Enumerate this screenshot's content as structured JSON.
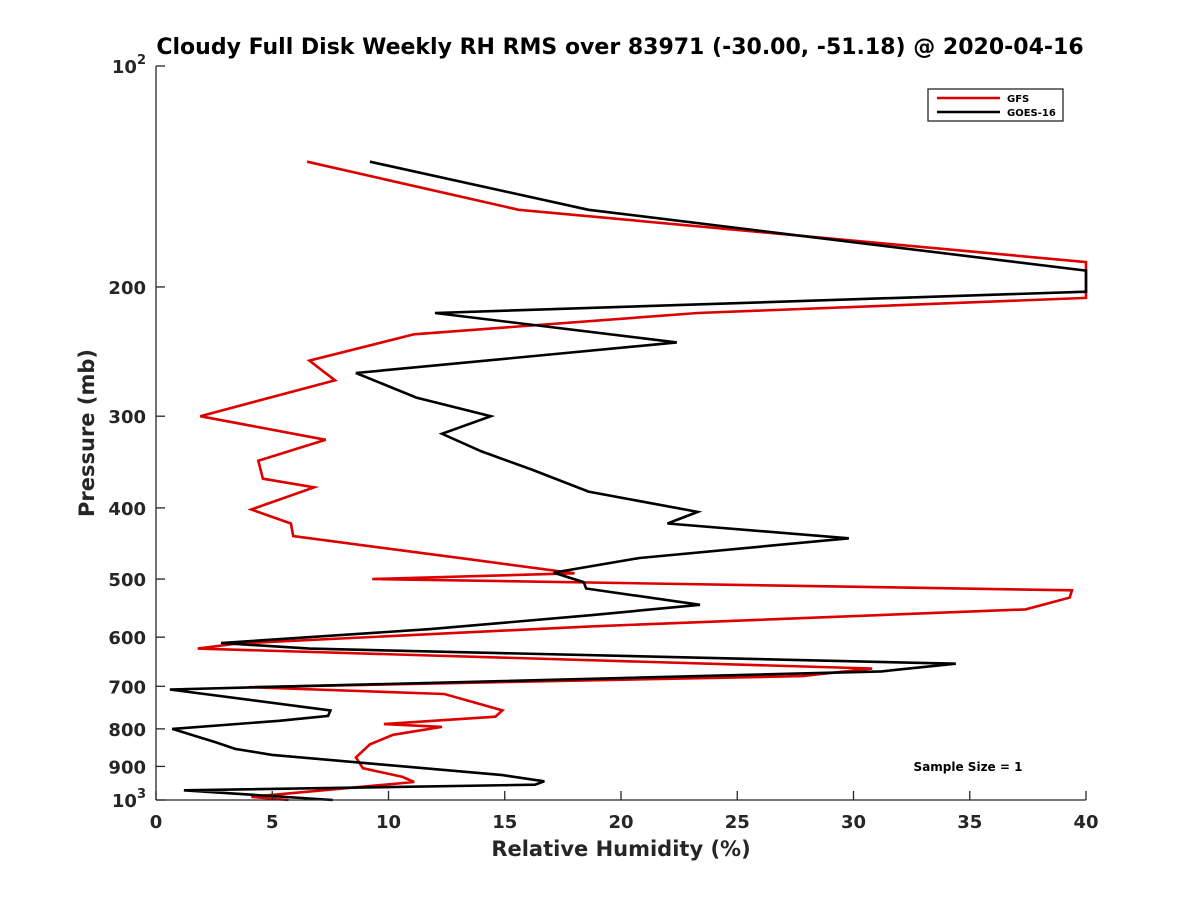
{
  "chart_data": {
    "type": "line",
    "title": "Cloudy Full Disk Weekly RH RMS over 83971 (-30.00, -51.18) @ 2020-04-16",
    "xlabel": "Relative Humidity (%)",
    "ylabel": "Pressure (mb)",
    "xlim": [
      0,
      40
    ],
    "ylim": [
      1000,
      100
    ],
    "y_scale": "log",
    "y_reversed": true,
    "grid": false,
    "legend_position": "top-right",
    "x_ticks": [
      "0",
      "5",
      "10",
      "15",
      "20",
      "25",
      "30",
      "35",
      "40"
    ],
    "y_ticks": [
      {
        "value": 100,
        "base": "10",
        "exp": "2"
      },
      {
        "value": 200,
        "label": "200"
      },
      {
        "value": 300,
        "label": "300"
      },
      {
        "value": 400,
        "label": "400"
      },
      {
        "value": 500,
        "label": "500"
      },
      {
        "value": 600,
        "label": "600"
      },
      {
        "value": 700,
        "label": "700"
      },
      {
        "value": 800,
        "label": "800"
      },
      {
        "value": 900,
        "label": "900"
      },
      {
        "value": 1000,
        "base": "10",
        "exp": "3"
      }
    ],
    "annotation": "Sample Size = 1",
    "series": [
      {
        "name": "GFS",
        "color": "#dd0000",
        "points": [
          [
            6.5,
            135
          ],
          [
            15.6,
            157
          ],
          [
            40,
            185
          ],
          [
            40,
            207
          ],
          [
            23.3,
            217
          ],
          [
            11.1,
            232
          ],
          [
            6.6,
            252
          ],
          [
            7.7,
            268
          ],
          [
            1.9,
            300
          ],
          [
            7.3,
            323
          ],
          [
            4.4,
            345
          ],
          [
            4.6,
            365
          ],
          [
            6.8,
            375
          ],
          [
            4.1,
            402
          ],
          [
            5.8,
            420
          ],
          [
            5.9,
            437
          ],
          [
            13.5,
            470
          ],
          [
            18.0,
            491
          ],
          [
            9.3,
            500
          ],
          [
            39.4,
            518
          ],
          [
            39.3,
            530
          ],
          [
            37.4,
            550
          ],
          [
            18.7,
            580
          ],
          [
            3.5,
            612
          ],
          [
            1.8,
            622
          ],
          [
            30.8,
            662
          ],
          [
            27.8,
            678
          ],
          [
            4.0,
            702
          ],
          [
            12.4,
            717
          ],
          [
            14.9,
            755
          ],
          [
            14.6,
            770
          ],
          [
            9.8,
            788
          ],
          [
            12.3,
            795
          ],
          [
            10.2,
            815
          ],
          [
            9.2,
            840
          ],
          [
            8.6,
            875
          ],
          [
            8.9,
            905
          ],
          [
            10.6,
            930
          ],
          [
            11.1,
            945
          ],
          [
            4.1,
            990
          ],
          [
            5.7,
            1000
          ]
        ]
      },
      {
        "name": "GOES-16",
        "color": "#000000",
        "points": [
          [
            9.2,
            135
          ],
          [
            18.6,
            157
          ],
          [
            40,
            190
          ],
          [
            40,
            203
          ],
          [
            12.0,
            217
          ],
          [
            22.4,
            238
          ],
          [
            8.6,
            262
          ],
          [
            11.2,
            283
          ],
          [
            14.4,
            300
          ],
          [
            12.3,
            317
          ],
          [
            14.0,
            335
          ],
          [
            16.2,
            355
          ],
          [
            18.6,
            380
          ],
          [
            23.3,
            405
          ],
          [
            22.0,
            420
          ],
          [
            29.8,
            440
          ],
          [
            20.8,
            468
          ],
          [
            17.1,
            490
          ],
          [
            18.4,
            505
          ],
          [
            18.5,
            515
          ],
          [
            23.4,
            542
          ],
          [
            18.7,
            560
          ],
          [
            11.8,
            585
          ],
          [
            2.8,
            611
          ],
          [
            6.6,
            622
          ],
          [
            34.4,
            652
          ],
          [
            31.2,
            668
          ],
          [
            0.6,
            707
          ],
          [
            7.5,
            755
          ],
          [
            7.4,
            768
          ],
          [
            5.3,
            780
          ],
          [
            0.7,
            800
          ],
          [
            2.6,
            835
          ],
          [
            3.4,
            852
          ],
          [
            5.0,
            868
          ],
          [
            14.9,
            925
          ],
          [
            16.7,
            943
          ],
          [
            16.3,
            953
          ],
          [
            1.2,
            970
          ],
          [
            7.6,
            1000
          ]
        ]
      }
    ]
  }
}
